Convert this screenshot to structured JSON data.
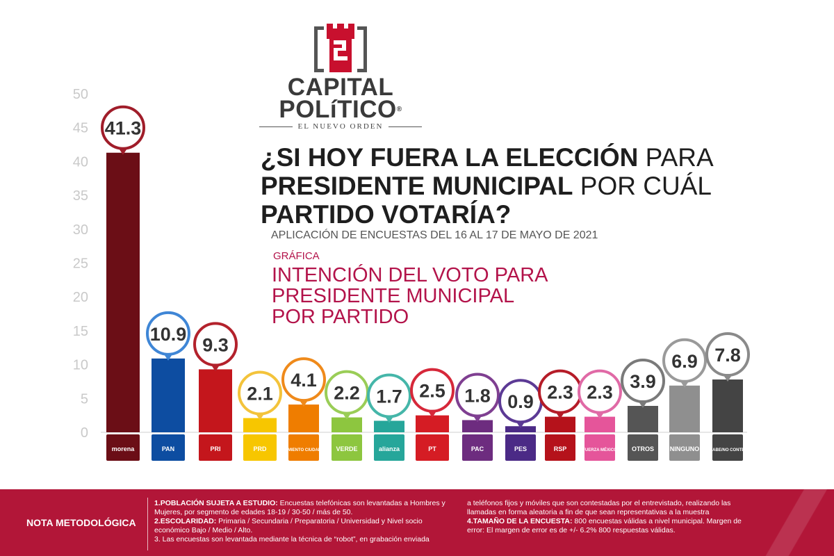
{
  "brand": {
    "name_line1": "CAPITAL",
    "name_line2": "POLíTICO",
    "registered": "®",
    "tagline": "EL NUEVO ORDEN",
    "colors": {
      "red": "#c8102e",
      "gray": "#3a3a3a"
    }
  },
  "headline": {
    "part1_bold": "¿SI HOY FUERA LA ELECCIÓN",
    "part1_rest": " PARA",
    "part2_bold": "PRESIDENTE MUNICIPAL",
    "part2_rest": " POR CUÁL",
    "part3_bold": "PARTIDO VOTARÍA?"
  },
  "dates": "APLICACIÓN DE ENCUESTAS DEL 16 AL 17 DE MAYO  DE 2021",
  "grafica": {
    "label": "GRÁFICA",
    "title_l1": "INTENCIÓN DEL VOTO PARA",
    "title_l2": "PRESIDENTE MUNICIPAL",
    "title_l3": "POR PARTIDO"
  },
  "chart_data": {
    "type": "bar",
    "title": "",
    "xlabel": "",
    "ylabel": "",
    "ylim": [
      0,
      50
    ],
    "yticks": [
      0,
      5,
      10,
      15,
      20,
      25,
      30,
      35,
      40,
      45,
      50
    ],
    "grid": false,
    "categories": [
      "morena",
      "PAN",
      "PRI",
      "PRD",
      "MOVIMIENTO CIUDADANO",
      "VERDE",
      "alianza",
      "PT",
      "PAC",
      "PES",
      "RSP",
      "FUERZA MÉXICO",
      "OTROS",
      "NINGUNO",
      "NO SABE/NO CONTESTÓ"
    ],
    "values": [
      41.3,
      10.9,
      9.3,
      2.1,
      4.1,
      2.2,
      1.7,
      2.5,
      1.8,
      0.9,
      2.3,
      2.3,
      3.9,
      6.9,
      7.8
    ],
    "value_labels": [
      "41.3",
      "10.9",
      "9.3",
      "2.1",
      "4.1",
      "2.2",
      "1.7",
      "2.5",
      "1.8",
      "0.9",
      "2.3",
      "2.3",
      "3.9",
      "6.9",
      "7.8"
    ],
    "colors": [
      "#6b0e16",
      "#0d4da1",
      "#c4161c",
      "#f7c600",
      "#ef7d00",
      "#8dc63f",
      "#26a69a",
      "#d51c24",
      "#6d2c7f",
      "#4b2a86",
      "#b5121b",
      "#e5559a",
      "#555555",
      "#8f8f8f",
      "#444444"
    ],
    "ring_colors": [
      "#a01d2a",
      "#3f86d6",
      "#b3222c",
      "#f3c33b",
      "#ef8a1b",
      "#9acd57",
      "#45b6a9",
      "#d6283a",
      "#7f3f91",
      "#5c3a95",
      "#b51c28",
      "#e06aa6",
      "#7a7a7a",
      "#9a9a9a",
      "#8a8a8a"
    ]
  },
  "footer": {
    "title": "NOTA METODOLÓGICA",
    "item1_bold": "1.POBLACIÓN SUJETA A ESTUDIO:",
    "item1_text": " Encuestas telefónicas son levantadas a Hombres y Mujeres, por segmento de edades 18-19 / 30-50 / más de 50.",
    "item2_bold": "2.ESCOLARIDAD:",
    "item2_text": " Primaria / Secundaria / Preparatoria / Universidad y Nivel socio económico Bajo / Medio / Alto.",
    "item3_text": "3. Las encuestas son levantada mediante la técnica de “robot”, en grabación enviada",
    "item3_cont": "a teléfonos fijos y móviles que son contestadas por el entrevistado, realizando las llamadas en forma aleatoria a fin de que sean representativas a la muestra",
    "item4_bold": "4.TAMAÑO DE LA ENCUESTA:",
    "item4_text": " 800 encuestas válidas a nivel municipal. Margen de error: El margen de error es de +/- 6.2%  800 respuestas válidas."
  }
}
